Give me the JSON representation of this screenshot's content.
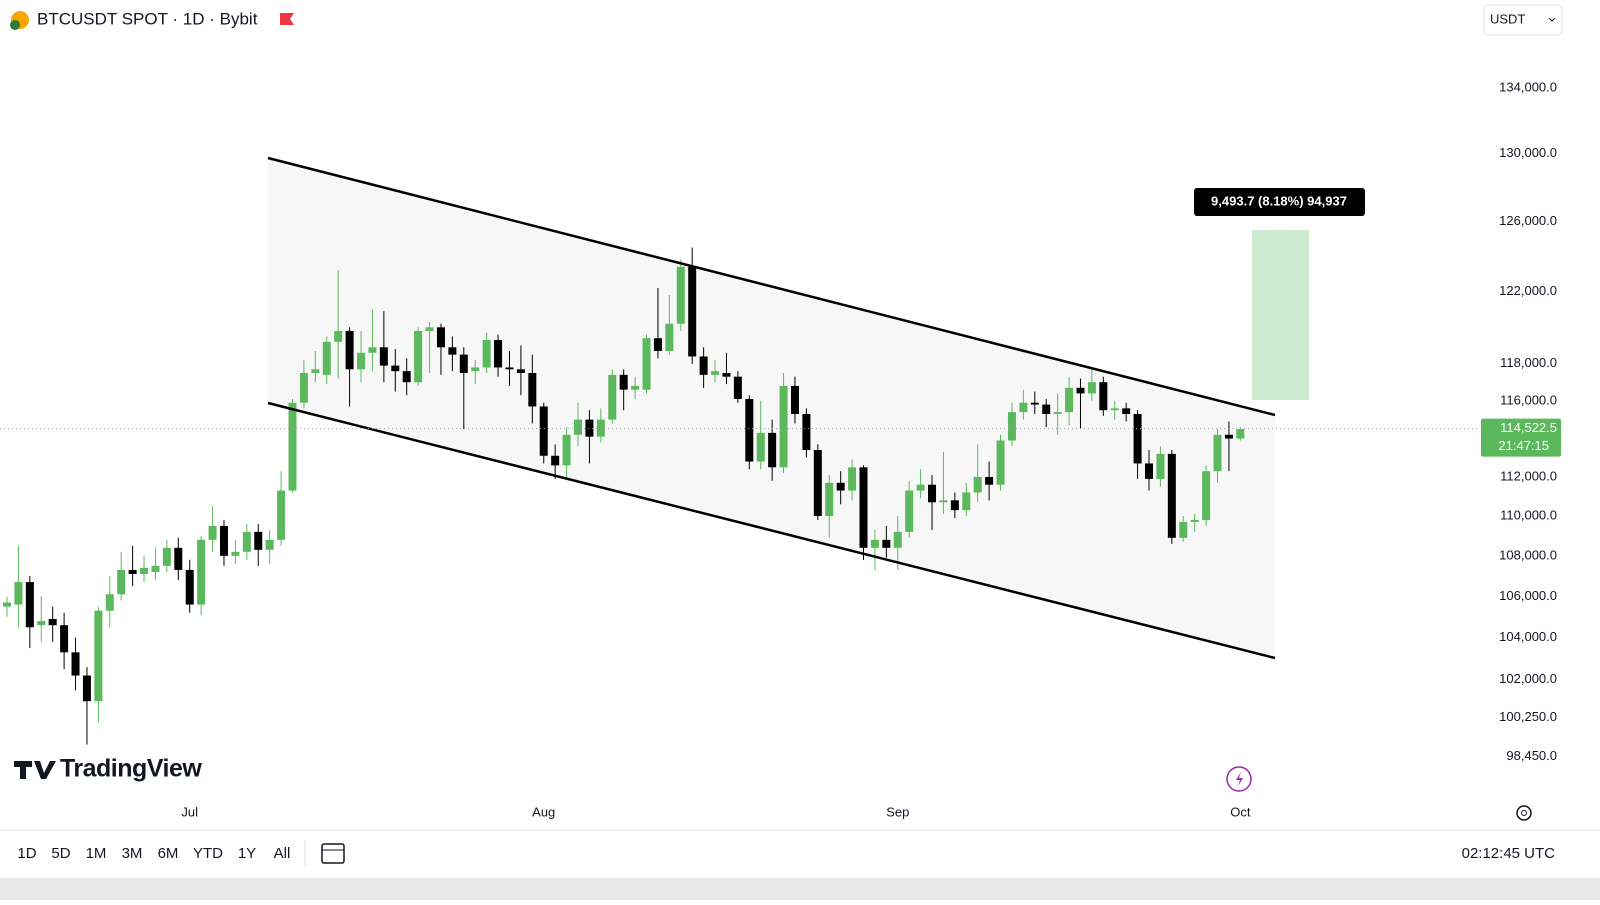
{
  "header": {
    "symbol": "BTCUSDT SPOT · 1D · Bybit",
    "currency": "USDT"
  },
  "chart_data": {
    "type": "candlestick",
    "categories": [
      null,
      null,
      null,
      null,
      null,
      null,
      null,
      null,
      null,
      null,
      null,
      null,
      null,
      null,
      null,
      null,
      "Jul",
      null,
      null,
      null,
      null,
      null,
      null,
      null,
      null,
      null,
      null,
      null,
      null,
      null,
      null,
      null,
      null,
      null,
      null,
      null,
      null,
      null,
      null,
      null,
      null,
      null,
      null,
      null,
      null,
      null,
      null,
      "Aug",
      null,
      null,
      null,
      null,
      null,
      null,
      null,
      null,
      null,
      null,
      null,
      null,
      null,
      null,
      null,
      null,
      null,
      null,
      null,
      null,
      null,
      null,
      null,
      null,
      null,
      null,
      null,
      null,
      null,
      null,
      "Sep",
      null,
      null,
      null,
      null,
      null,
      null,
      null,
      null,
      null,
      null,
      null,
      null,
      null,
      null,
      null,
      null,
      null,
      null,
      null,
      null,
      null,
      null,
      null,
      null,
      null,
      null,
      null,
      null,
      null,
      "Oct"
    ],
    "open": [
      105500,
      105600,
      106700,
      104600,
      104900,
      104600,
      103300,
      102200,
      101000,
      105300,
      106100,
      107300,
      107100,
      107200,
      107500,
      108400,
      107300,
      105600,
      108800,
      109500,
      108000,
      108200,
      109200,
      108300,
      108800,
      111300,
      115900,
      117500,
      117400,
      119200,
      119800,
      117700,
      118600,
      118900,
      117900,
      117600,
      117000,
      119800,
      120000,
      118900,
      118500,
      117600,
      117800,
      119300,
      117800,
      117700,
      117500,
      115700,
      113100,
      112600,
      114200,
      115000,
      114100,
      115000,
      117400,
      116600,
      116600,
      119400,
      118700,
      120200,
      123400,
      118400,
      117400,
      117500,
      117300,
      116100,
      112800,
      114300,
      112500,
      116800,
      115300,
      113400,
      110000,
      111700,
      111300,
      112500,
      108400,
      108800,
      108400,
      109200,
      111300,
      111600,
      110700,
      110800,
      110300,
      111200,
      112000,
      111600,
      113900,
      115400,
      115900,
      115800,
      115300,
      115400,
      116700,
      116400,
      117000,
      115500,
      115600,
      115300,
      112700,
      111900,
      113200,
      108900,
      109700,
      109800,
      112300,
      114200,
      114000
    ],
    "high": [
      106000,
      108500,
      107000,
      106000,
      105500,
      105200,
      104000,
      102600,
      105500,
      107000,
      108200,
      108500,
      108000,
      108400,
      108800,
      108900,
      107800,
      109000,
      110500,
      109800,
      108800,
      109600,
      109600,
      109300,
      112300,
      116100,
      118200,
      118700,
      119500,
      123200,
      120000,
      119800,
      121000,
      120900,
      118800,
      118300,
      120000,
      120300,
      120200,
      119500,
      118900,
      118200,
      119700,
      119600,
      118700,
      119000,
      118500,
      115900,
      113700,
      114600,
      115900,
      115500,
      115600,
      117700,
      117700,
      117300,
      119600,
      122200,
      121800,
      123800,
      124500,
      118900,
      118200,
      118600,
      117600,
      116300,
      116000,
      115000,
      117500,
      117300,
      115600,
      113700,
      112100,
      112300,
      112900,
      112600,
      109300,
      109500,
      110000,
      111800,
      112400,
      112100,
      113300,
      111200,
      111700,
      113700,
      112800,
      114200,
      115900,
      116600,
      116500,
      116100,
      116400,
      117300,
      117200,
      117800,
      117300,
      116000,
      115900,
      115500,
      113400,
      113600,
      113400,
      110000,
      110100,
      112600,
      114500,
      114900,
      114600
    ],
    "low": [
      105000,
      104500,
      103500,
      103800,
      103800,
      102500,
      101500,
      99000,
      100000,
      104500,
      105800,
      106500,
      106700,
      106800,
      107200,
      106800,
      105200,
      105100,
      108200,
      107500,
      107600,
      107800,
      107500,
      107600,
      108500,
      111200,
      115600,
      117000,
      116900,
      117200,
      115700,
      117000,
      117600,
      117000,
      116500,
      116300,
      116800,
      117500,
      117400,
      117600,
      114500,
      116900,
      117500,
      117300,
      116800,
      116300,
      114800,
      112700,
      111900,
      111900,
      113600,
      112700,
      113800,
      114800,
      115500,
      116100,
      116400,
      118300,
      118500,
      119800,
      118000,
      116700,
      117000,
      116900,
      115900,
      112400,
      112400,
      111800,
      112200,
      114800,
      113000,
      109800,
      108900,
      110600,
      110800,
      107800,
      107300,
      107900,
      107300,
      108900,
      110900,
      109300,
      110100,
      109900,
      110000,
      110700,
      110800,
      111300,
      113600,
      115000,
      115300,
      114600,
      114200,
      114700,
      114500,
      116000,
      115200,
      115000,
      114900,
      111900,
      111300,
      111500,
      108600,
      108700,
      109200,
      109500,
      111700,
      112300,
      113900
    ],
    "close": [
      105700,
      106700,
      104500,
      104800,
      104600,
      103300,
      102200,
      101000,
      105300,
      106100,
      107300,
      107100,
      107400,
      107500,
      108400,
      107300,
      105600,
      108800,
      109500,
      108000,
      108200,
      109200,
      108300,
      108800,
      111300,
      115900,
      117500,
      117700,
      119200,
      119800,
      117700,
      118600,
      118900,
      117900,
      117600,
      117000,
      119800,
      120000,
      118900,
      118500,
      117500,
      117800,
      119300,
      117800,
      117700,
      117500,
      115700,
      113100,
      112600,
      114200,
      115000,
      114100,
      115000,
      117400,
      116600,
      116800,
      119400,
      118700,
      120200,
      123400,
      118400,
      117400,
      117600,
      117300,
      116100,
      112800,
      114300,
      112500,
      116800,
      115300,
      113400,
      110000,
      111700,
      111300,
      112500,
      108400,
      108800,
      108400,
      109200,
      111300,
      111600,
      110700,
      110800,
      110300,
      111200,
      112000,
      111600,
      113900,
      115400,
      115900,
      115800,
      115300,
      115400,
      116700,
      116400,
      117000,
      115500,
      115600,
      115300,
      112700,
      111900,
      113200,
      108900,
      109700,
      109800,
      112300,
      114200,
      114000,
      114500
    ],
    "up_color": "#5cb85c",
    "down_color": "#000000",
    "log_scale": true,
    "grid": false,
    "ylim": [
      96500,
      137000
    ],
    "yticks": [
      {
        "value": 98450,
        "label": "98,450.0"
      },
      {
        "value": 100250,
        "label": "100,250.0"
      },
      {
        "value": 102000,
        "label": "102,000.0"
      },
      {
        "value": 104000,
        "label": "104,000.0"
      },
      {
        "value": 106000,
        "label": "106,000.0"
      },
      {
        "value": 108000,
        "label": "108,000.0"
      },
      {
        "value": 110000,
        "label": "110,000.0"
      },
      {
        "value": 112000,
        "label": "112,000.0"
      },
      {
        "value": 116000,
        "label": "116,000.0"
      },
      {
        "value": 118000,
        "label": "118,000.0"
      },
      {
        "value": 122000,
        "label": "122,000.0"
      },
      {
        "value": 126000,
        "label": "126,000.0"
      },
      {
        "value": 130000,
        "label": "130,000.0"
      },
      {
        "value": 134000,
        "label": "134,000.0"
      }
    ],
    "last_price": {
      "value": 114522.5,
      "label": "114,522.5"
    },
    "countdown": "21:47:15",
    "measure_label": "9,493.7 (8.18%) 94,937"
  },
  "watermark": "TradingView",
  "toolbar": {
    "ranges": [
      "1D",
      "5D",
      "1M",
      "3M",
      "6M",
      "YTD",
      "1Y",
      "All"
    ],
    "clock": "02:12:45 UTC"
  }
}
